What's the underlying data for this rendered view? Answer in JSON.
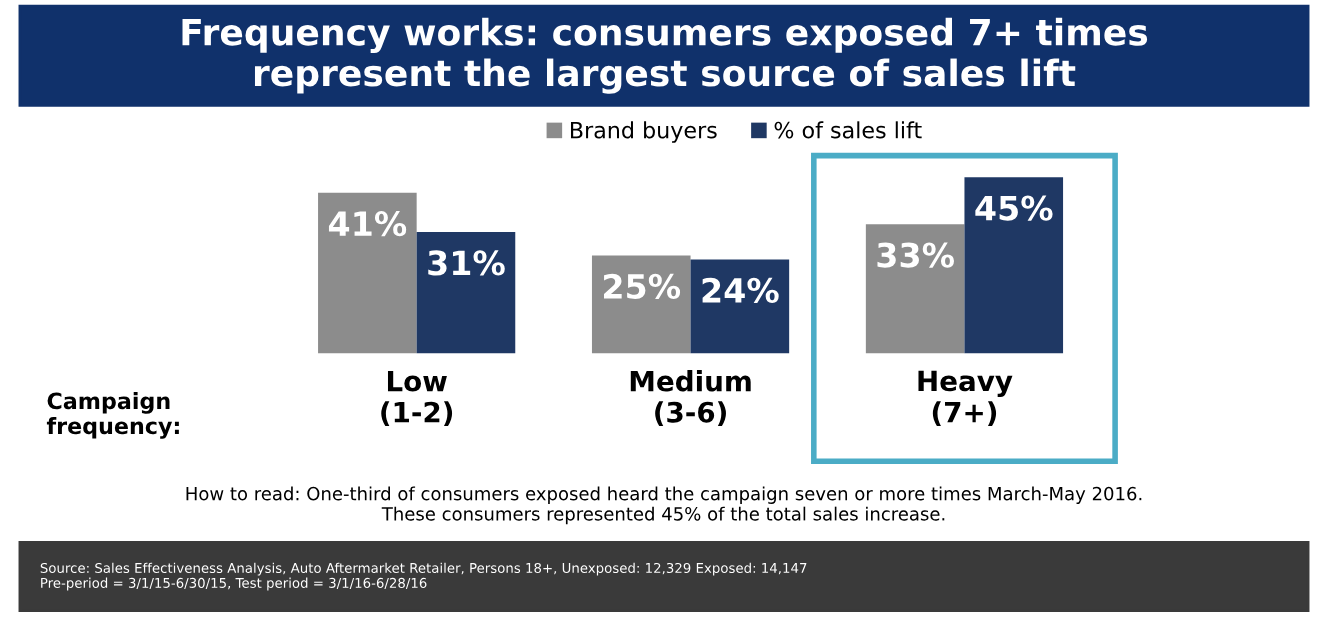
{
  "chart_data": {
    "type": "bar",
    "title": "Frequency works: consumers exposed 7+ times\nrepresent the largest source of sales lift",
    "xlabel": "Campaign\nfrequency:",
    "categories": [
      "Low\n(1-2)",
      "Medium\n(3-6)",
      "Heavy\n(7+)"
    ],
    "series": [
      {
        "name": "Brand buyers",
        "color": "#8c8c8c",
        "values": [
          41,
          25,
          33
        ],
        "value_labels": [
          "41%",
          "25%",
          "33%"
        ]
      },
      {
        "name": "% of sales lift",
        "color": "#1f3864",
        "values": [
          31,
          24,
          45
        ],
        "value_labels": [
          "31%",
          "24%",
          "45%"
        ]
      }
    ],
    "legend": "top",
    "annotations": [
      "How to read: One-third of consumers exposed heard the campaign seven or more times March-May 2016.\nThese consumers represented 45% of the total sales increase.",
      "Source: Sales Effectiveness Analysis, Auto Aftermarket Retailer, Persons 18+, Unexposed: 12,329 Exposed: 14,147\nPre-period = 3/1/15-6/30/15, Test period = 3/1/16-6/28/16"
    ]
  }
}
